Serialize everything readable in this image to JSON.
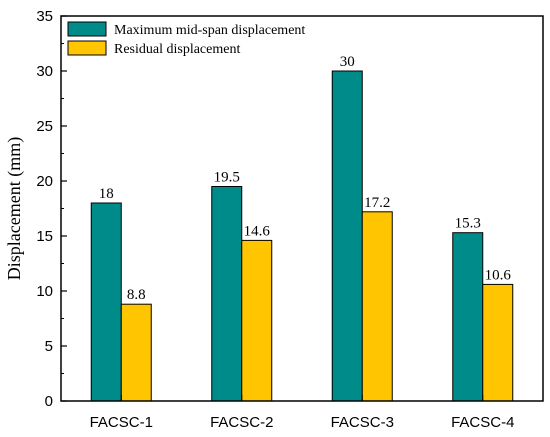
{
  "chart_data": {
    "type": "bar",
    "categories": [
      "FACSC-1",
      "FACSC-2",
      "FACSC-3",
      "FACSC-4"
    ],
    "series": [
      {
        "name": "Maximum mid-span displacement",
        "values": [
          18,
          19.5,
          30,
          15.3
        ],
        "color": "#008B8B"
      },
      {
        "name": "Residual displacement",
        "values": [
          8.8,
          14.6,
          17.2,
          10.6
        ],
        "color": "#FFC500"
      }
    ],
    "data_labels": [
      [
        "18",
        "19.5",
        "30",
        "15.3"
      ],
      [
        "8.8",
        "14.6",
        "17.2",
        "10.6"
      ]
    ],
    "title": "",
    "xlabel": "",
    "ylabel": "Displacement (mm)",
    "ylim": [
      0,
      35
    ],
    "yticks": [
      "0",
      "5",
      "10",
      "15",
      "20",
      "25",
      "30",
      "35"
    ],
    "grid": false,
    "legend_position": "top-left"
  }
}
